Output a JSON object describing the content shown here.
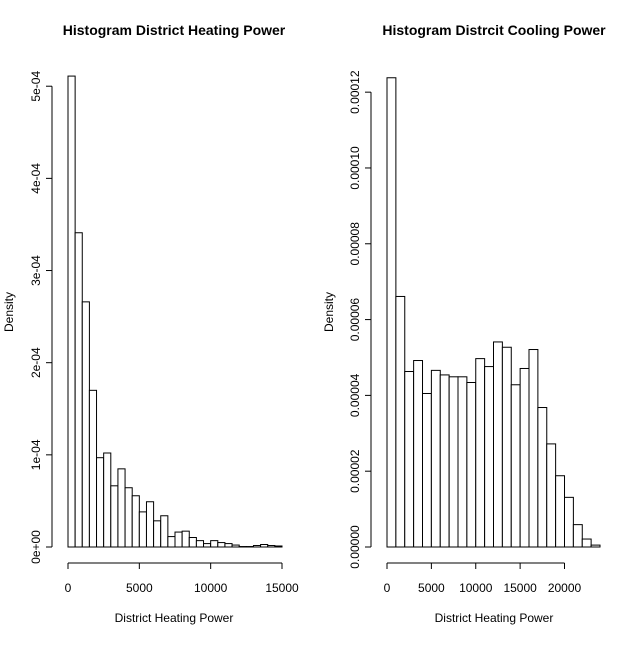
{
  "chart_data": [
    {
      "type": "bar",
      "title": "Histogram District Heating Power",
      "xlabel": "District Heating Power",
      "ylabel": "Density",
      "xlim": [
        0,
        15000
      ],
      "ylim": [
        0,
        0.00051
      ],
      "bin_width": 500,
      "x_ticks": [
        0,
        5000,
        10000,
        15000
      ],
      "x_tick_labels": [
        "0",
        "5000",
        "10000",
        "15000"
      ],
      "y_ticks": [
        0,
        0.0001,
        0.0002,
        0.0003,
        0.0004,
        0.0005
      ],
      "y_tick_labels": [
        "0e+00",
        "1e-04",
        "2e-04",
        "3e-04",
        "4e-04",
        "5e-04"
      ],
      "bins": [
        {
          "x0": 0,
          "x1": 500,
          "density": 0.000511
        },
        {
          "x0": 500,
          "x1": 1000,
          "density": 0.000341
        },
        {
          "x0": 1000,
          "x1": 1500,
          "density": 0.000266
        },
        {
          "x0": 1500,
          "x1": 2000,
          "density": 0.00017
        },
        {
          "x0": 2000,
          "x1": 2500,
          "density": 9.69e-05
        },
        {
          "x0": 2500,
          "x1": 3000,
          "density": 0.000102
        },
        {
          "x0": 3000,
          "x1": 3500,
          "density": 6.64e-05
        },
        {
          "x0": 3500,
          "x1": 4000,
          "density": 8.48e-05
        },
        {
          "x0": 4000,
          "x1": 4500,
          "density": 6.43e-05
        },
        {
          "x0": 4500,
          "x1": 5000,
          "density": 5.56e-05
        },
        {
          "x0": 5000,
          "x1": 5500,
          "density": 3.81e-05
        },
        {
          "x0": 5500,
          "x1": 6000,
          "density": 4.91e-05
        },
        {
          "x0": 6000,
          "x1": 6500,
          "density": 2.84e-05
        },
        {
          "x0": 6500,
          "x1": 7000,
          "density": 3.39e-05
        },
        {
          "x0": 7000,
          "x1": 7500,
          "density": 1.13e-05
        },
        {
          "x0": 7500,
          "x1": 8000,
          "density": 1.62e-05
        },
        {
          "x0": 8000,
          "x1": 8500,
          "density": 1.72e-05
        },
        {
          "x0": 8500,
          "x1": 9000,
          "density": 1.03e-05
        },
        {
          "x0": 9000,
          "x1": 9500,
          "density": 6.9e-06
        },
        {
          "x0": 9500,
          "x1": 10000,
          "density": 3.7e-06
        },
        {
          "x0": 10000,
          "x1": 10500,
          "density": 6.9e-06
        },
        {
          "x0": 10500,
          "x1": 11000,
          "density": 4.8e-06
        },
        {
          "x0": 11000,
          "x1": 11500,
          "density": 3.7e-06
        },
        {
          "x0": 11500,
          "x1": 12000,
          "density": 2.1e-06
        },
        {
          "x0": 12000,
          "x1": 12500,
          "density": 5e-07
        },
        {
          "x0": 12500,
          "x1": 13000,
          "density": 5e-07
        },
        {
          "x0": 13000,
          "x1": 13500,
          "density": 1.6e-06
        },
        {
          "x0": 13500,
          "x1": 14000,
          "density": 2.7e-06
        },
        {
          "x0": 14000,
          "x1": 14500,
          "density": 1.6e-06
        },
        {
          "x0": 14500,
          "x1": 15000,
          "density": 1.1e-06
        }
      ]
    },
    {
      "type": "bar",
      "title": "Histogram Distrcit Cooling Power",
      "xlabel": "District Heating Power",
      "ylabel": "Density",
      "xlim": [
        0,
        24000
      ],
      "ylim": [
        0,
        0.000124
      ],
      "bin_width": 1000,
      "x_ticks": [
        0,
        5000,
        10000,
        15000,
        20000
      ],
      "x_tick_labels": [
        "0",
        "5000",
        "10000",
        "15000",
        "20000"
      ],
      "y_ticks": [
        0,
        2e-05,
        4e-05,
        6e-05,
        8e-05,
        0.0001,
        0.00012
      ],
      "y_tick_labels": [
        "0.00000",
        "0.00002",
        "0.00004",
        "0.00006",
        "0.00008",
        "0.00010",
        "0.00012"
      ],
      "bins": [
        {
          "x0": 0,
          "x1": 1000,
          "density": 0.0001238
        },
        {
          "x0": 1000,
          "x1": 2000,
          "density": 6.61e-05
        },
        {
          "x0": 2000,
          "x1": 3000,
          "density": 4.63e-05
        },
        {
          "x0": 3000,
          "x1": 4000,
          "density": 4.92e-05
        },
        {
          "x0": 4000,
          "x1": 5000,
          "density": 4.05e-05
        },
        {
          "x0": 5000,
          "x1": 6000,
          "density": 4.66e-05
        },
        {
          "x0": 6000,
          "x1": 7000,
          "density": 4.54e-05
        },
        {
          "x0": 7000,
          "x1": 8000,
          "density": 4.49e-05
        },
        {
          "x0": 8000,
          "x1": 9000,
          "density": 4.49e-05
        },
        {
          "x0": 9000,
          "x1": 10000,
          "density": 4.34e-05
        },
        {
          "x0": 10000,
          "x1": 11000,
          "density": 4.97e-05
        },
        {
          "x0": 11000,
          "x1": 12000,
          "density": 4.76e-05
        },
        {
          "x0": 12000,
          "x1": 13000,
          "density": 5.41e-05
        },
        {
          "x0": 13000,
          "x1": 14000,
          "density": 5.27e-05
        },
        {
          "x0": 14000,
          "x1": 15000,
          "density": 4.28e-05
        },
        {
          "x0": 15000,
          "x1": 16000,
          "density": 4.71e-05
        },
        {
          "x0": 16000,
          "x1": 17000,
          "density": 5.21e-05
        },
        {
          "x0": 17000,
          "x1": 18000,
          "density": 3.68e-05
        },
        {
          "x0": 18000,
          "x1": 19000,
          "density": 2.72e-05
        },
        {
          "x0": 19000,
          "x1": 20000,
          "density": 1.88e-05
        },
        {
          "x0": 20000,
          "x1": 21000,
          "density": 1.31e-05
        },
        {
          "x0": 21000,
          "x1": 22000,
          "density": 5.9e-06
        },
        {
          "x0": 22000,
          "x1": 23000,
          "density": 2.1e-06
        },
        {
          "x0": 23000,
          "x1": 24000,
          "density": 5e-07
        }
      ]
    }
  ]
}
